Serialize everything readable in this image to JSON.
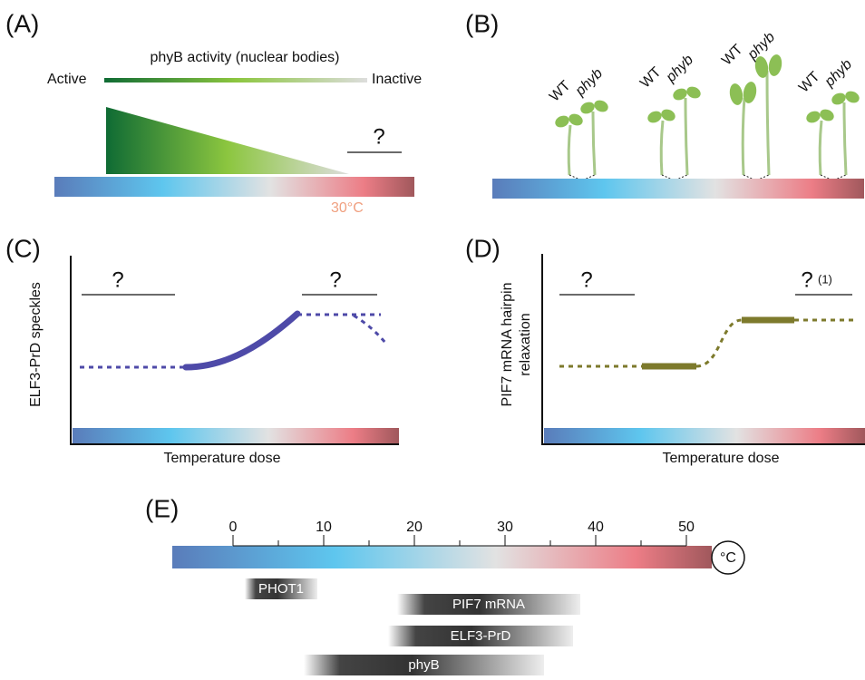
{
  "panels": {
    "A": {
      "label": "(A)",
      "title": "phyB activity  (nuclear bodies)",
      "left": "Active",
      "right": "Inactive",
      "question": "?",
      "temperature": "30°C"
    },
    "B": {
      "label": "(B)",
      "seedlings": [
        {
          "wt": "WT",
          "mutant": "phyb"
        },
        {
          "wt": "WT",
          "mutant": "phyb"
        },
        {
          "wt": "WT",
          "mutant": "phyb"
        },
        {
          "wt": "WT",
          "mutant": "phyb"
        }
      ]
    },
    "C": {
      "label": "(C)",
      "y_label": "ELF3-PrD speckles",
      "x_label": "Temperature dose",
      "questions": [
        "?",
        "?"
      ]
    },
    "D": {
      "label": "(D)",
      "y_label_lines": [
        "PIF7 mRNA hairpin",
        "relaxation"
      ],
      "x_label": "Temperature dose",
      "questions": [
        "?",
        "?"
      ],
      "note": "(1)"
    },
    "E": {
      "label": "(E)",
      "unit": "°C",
      "ticks": [
        "0",
        "10",
        "20",
        "30",
        "40",
        "50"
      ],
      "bars": [
        "PHOT1",
        "PIF7 mRNA",
        "ELF3-PrD",
        "phyB"
      ]
    }
  }
}
